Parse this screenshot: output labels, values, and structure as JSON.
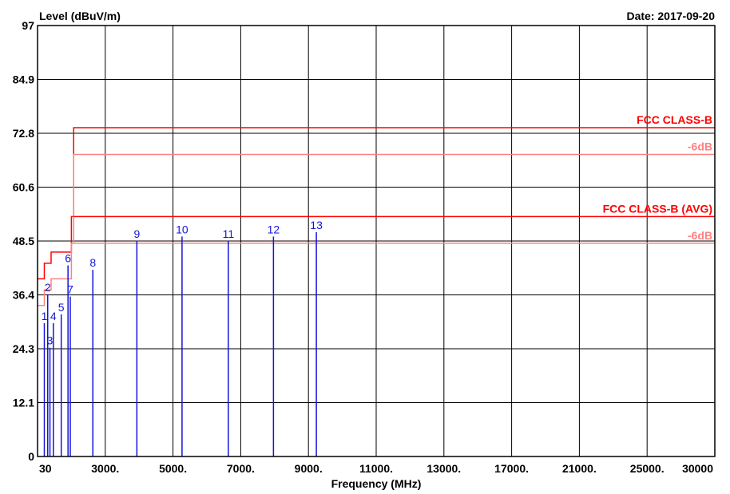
{
  "chart_data": {
    "type": "line",
    "title": "",
    "ylabel": "Level (dBuV/m)",
    "xlabel": "Frequency (MHz)",
    "date_label": "Date: 2017-09-20",
    "ylim": [
      0,
      97
    ],
    "y_ticks": [
      "0",
      "12.1",
      "24.3",
      "36.4",
      "48.5",
      "60.6",
      "72.8",
      "84.9",
      "97"
    ],
    "x_ticks": [
      "30",
      "3000.",
      "5000.",
      "7000.",
      "9000.",
      "11000.",
      "13000.",
      "17000.",
      "21000.",
      "25000.",
      "30000"
    ],
    "grid": true,
    "limit_lines": [
      {
        "name": "FCC CLASS-B",
        "color": "#ff0000",
        "points": [
          [
            0,
            40
          ],
          [
            0.3,
            40
          ],
          [
            0.3,
            43.5
          ],
          [
            0.6,
            43.5
          ],
          [
            0.6,
            46
          ],
          [
            1.5,
            46
          ],
          [
            1.5,
            54
          ],
          [
            1.6,
            54
          ],
          [
            1.6,
            74
          ],
          [
            30,
            74
          ]
        ]
      },
      {
        "name": "-6dB",
        "color": "#ff8080",
        "points": [
          [
            0,
            34
          ],
          [
            0.3,
            34
          ],
          [
            0.3,
            37.5
          ],
          [
            0.6,
            37.5
          ],
          [
            0.6,
            40
          ],
          [
            1.5,
            40
          ],
          [
            1.5,
            48
          ],
          [
            1.6,
            48
          ],
          [
            1.6,
            68
          ],
          [
            30,
            68
          ]
        ]
      },
      {
        "name": "FCC CLASS-B (AVG)",
        "color": "#ff0000",
        "points": [
          [
            1.6,
            54
          ],
          [
            30,
            54
          ]
        ]
      },
      {
        "name": "-6dB",
        "color": "#ff8080",
        "points": [
          [
            1.6,
            48
          ],
          [
            30,
            48
          ]
        ]
      }
    ],
    "markers": [
      {
        "label": "1",
        "x": 0.3,
        "y": 30
      },
      {
        "label": "2",
        "x": 0.45,
        "y": 36.5
      },
      {
        "label": "3",
        "x": 0.55,
        "y": 24.5
      },
      {
        "label": "4",
        "x": 0.7,
        "y": 30
      },
      {
        "label": "5",
        "x": 1.05,
        "y": 32
      },
      {
        "label": "6",
        "x": 1.35,
        "y": 43
      },
      {
        "label": "7",
        "x": 1.45,
        "y": 36
      },
      {
        "label": "8",
        "x": 2.45,
        "y": 42
      },
      {
        "label": "9",
        "x": 4.4,
        "y": 48.5
      },
      {
        "label": "10",
        "x": 6.4,
        "y": 49.5
      },
      {
        "label": "11",
        "x": 8.45,
        "y": 48.5
      },
      {
        "label": "12",
        "x": 10.45,
        "y": 49.5
      },
      {
        "label": "13",
        "x": 12.35,
        "y": 50.5
      }
    ]
  }
}
